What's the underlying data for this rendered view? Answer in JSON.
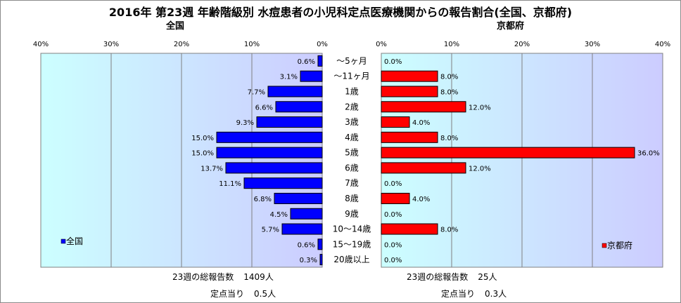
{
  "title": "2016年 第23週 年齢階級別 水痘患者の小児科定点医療機関からの報告割合(全国、京都府)",
  "colors": {
    "national_bar": "#0000ff",
    "kyoto_bar": "#ff0000",
    "plot_gradient_start": "#ccffff",
    "plot_gradient_end": "#ccccff"
  },
  "chart_data": [
    {
      "type": "bar",
      "orientation": "horizontal",
      "direction": "right-to-left",
      "title": "全国",
      "categories": [
        "～5ヶ月",
        "～11ヶ月",
        "1歳",
        "2歳",
        "3歳",
        "4歳",
        "5歳",
        "6歳",
        "7歳",
        "8歳",
        "9歳",
        "10～14歳",
        "15～19歳",
        "20歳以上"
      ],
      "series": [
        {
          "name": "全国",
          "values": [
            0.6,
            3.1,
            7.7,
            6.6,
            9.3,
            15.0,
            15.0,
            13.7,
            11.1,
            6.8,
            4.5,
            5.7,
            0.6,
            0.3
          ],
          "labels": [
            "0.6%",
            "3.1%",
            "7.7%",
            "6.6%",
            "9.3%",
            "15.0%",
            "15.0%",
            "13.7%",
            "11.1%",
            "6.8%",
            "4.5%",
            "5.7%",
            "0.6%",
            "0.3%"
          ]
        }
      ],
      "xlim": [
        0,
        40
      ],
      "ticks": [
        "0%",
        "10%",
        "20%",
        "30%",
        "40%"
      ],
      "grid": true,
      "legend": "bottom-left"
    },
    {
      "type": "bar",
      "orientation": "horizontal",
      "direction": "left-to-right",
      "title": "京都府",
      "categories": [
        "～5ヶ月",
        "～11ヶ月",
        "1歳",
        "2歳",
        "3歳",
        "4歳",
        "5歳",
        "6歳",
        "7歳",
        "8歳",
        "9歳",
        "10～14歳",
        "15～19歳",
        "20歳以上"
      ],
      "series": [
        {
          "name": "京都府",
          "values": [
            0.0,
            8.0,
            8.0,
            12.0,
            4.0,
            8.0,
            36.0,
            12.0,
            0.0,
            4.0,
            0.0,
            8.0,
            0.0,
            0.0
          ],
          "labels": [
            "0.0%",
            "8.0%",
            "8.0%",
            "12.0%",
            "4.0%",
            "8.0%",
            "36.0%",
            "12.0%",
            "0.0%",
            "4.0%",
            "0.0%",
            "8.0%",
            "0.0%",
            "0.0%"
          ]
        }
      ],
      "xlim": [
        0,
        40
      ],
      "ticks": [
        "0%",
        "10%",
        "20%",
        "30%",
        "40%"
      ],
      "grid": true,
      "legend": "bottom-right"
    }
  ],
  "footer": {
    "national_total_label": "23週の総報告数",
    "national_total_value": "1409人",
    "national_per_label": "定点当り",
    "national_per_value": "0.5人",
    "kyoto_total_label": "23週の総報告数",
    "kyoto_total_value": "25人",
    "kyoto_per_label": "定点当り",
    "kyoto_per_value": "0.3人"
  }
}
